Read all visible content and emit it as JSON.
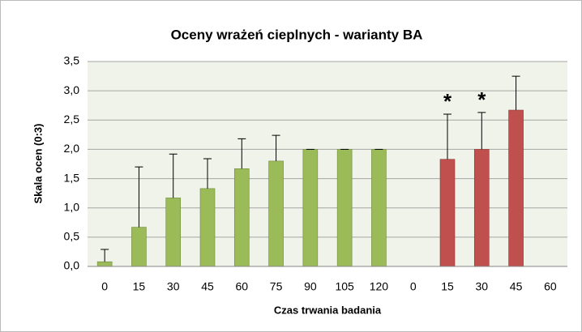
{
  "chart_data": {
    "type": "bar",
    "title": "Oceny wrażeń cieplnych - warianty BA",
    "x_label": "Czas trwania badania",
    "y_label": "Skala ocen (0:3)",
    "categories": [
      "0",
      "15",
      "30",
      "45",
      "60",
      "75",
      "90",
      "105",
      "120",
      "0",
      "15",
      "30",
      "45",
      "60"
    ],
    "values": [
      0.08,
      0.67,
      1.17,
      1.33,
      1.67,
      1.8,
      2.0,
      2.0,
      2.0,
      null,
      1.83,
      2.0,
      2.67,
      null
    ],
    "errors": [
      0.21,
      1.03,
      0.75,
      0.51,
      0.51,
      0.44,
      0,
      0,
      0,
      null,
      0.77,
      0.63,
      0.58,
      null
    ],
    "colors": [
      "#9bbb59",
      "#9bbb59",
      "#9bbb59",
      "#9bbb59",
      "#9bbb59",
      "#9bbb59",
      "#9bbb59",
      "#9bbb59",
      "#9bbb59",
      "#c0504d",
      "#c0504d",
      "#c0504d",
      "#c0504d",
      "#c0504d"
    ],
    "annotations": [
      {
        "text": "*",
        "at": 10
      },
      {
        "text": "*",
        "at": 11
      }
    ],
    "ylim": [
      0,
      3.5
    ],
    "yticks": [
      {
        "value": 0,
        "label": "0,0"
      },
      {
        "value": 0.5,
        "label": "0,5"
      },
      {
        "value": 1,
        "label": "1,0"
      },
      {
        "value": 1.5,
        "label": "1,5"
      },
      {
        "value": 2,
        "label": "2,0"
      },
      {
        "value": 2.5,
        "label": "2,5"
      },
      {
        "value": 3,
        "label": "3,0"
      },
      {
        "value": 3.5,
        "label": "3,5"
      }
    ],
    "grid": true
  }
}
